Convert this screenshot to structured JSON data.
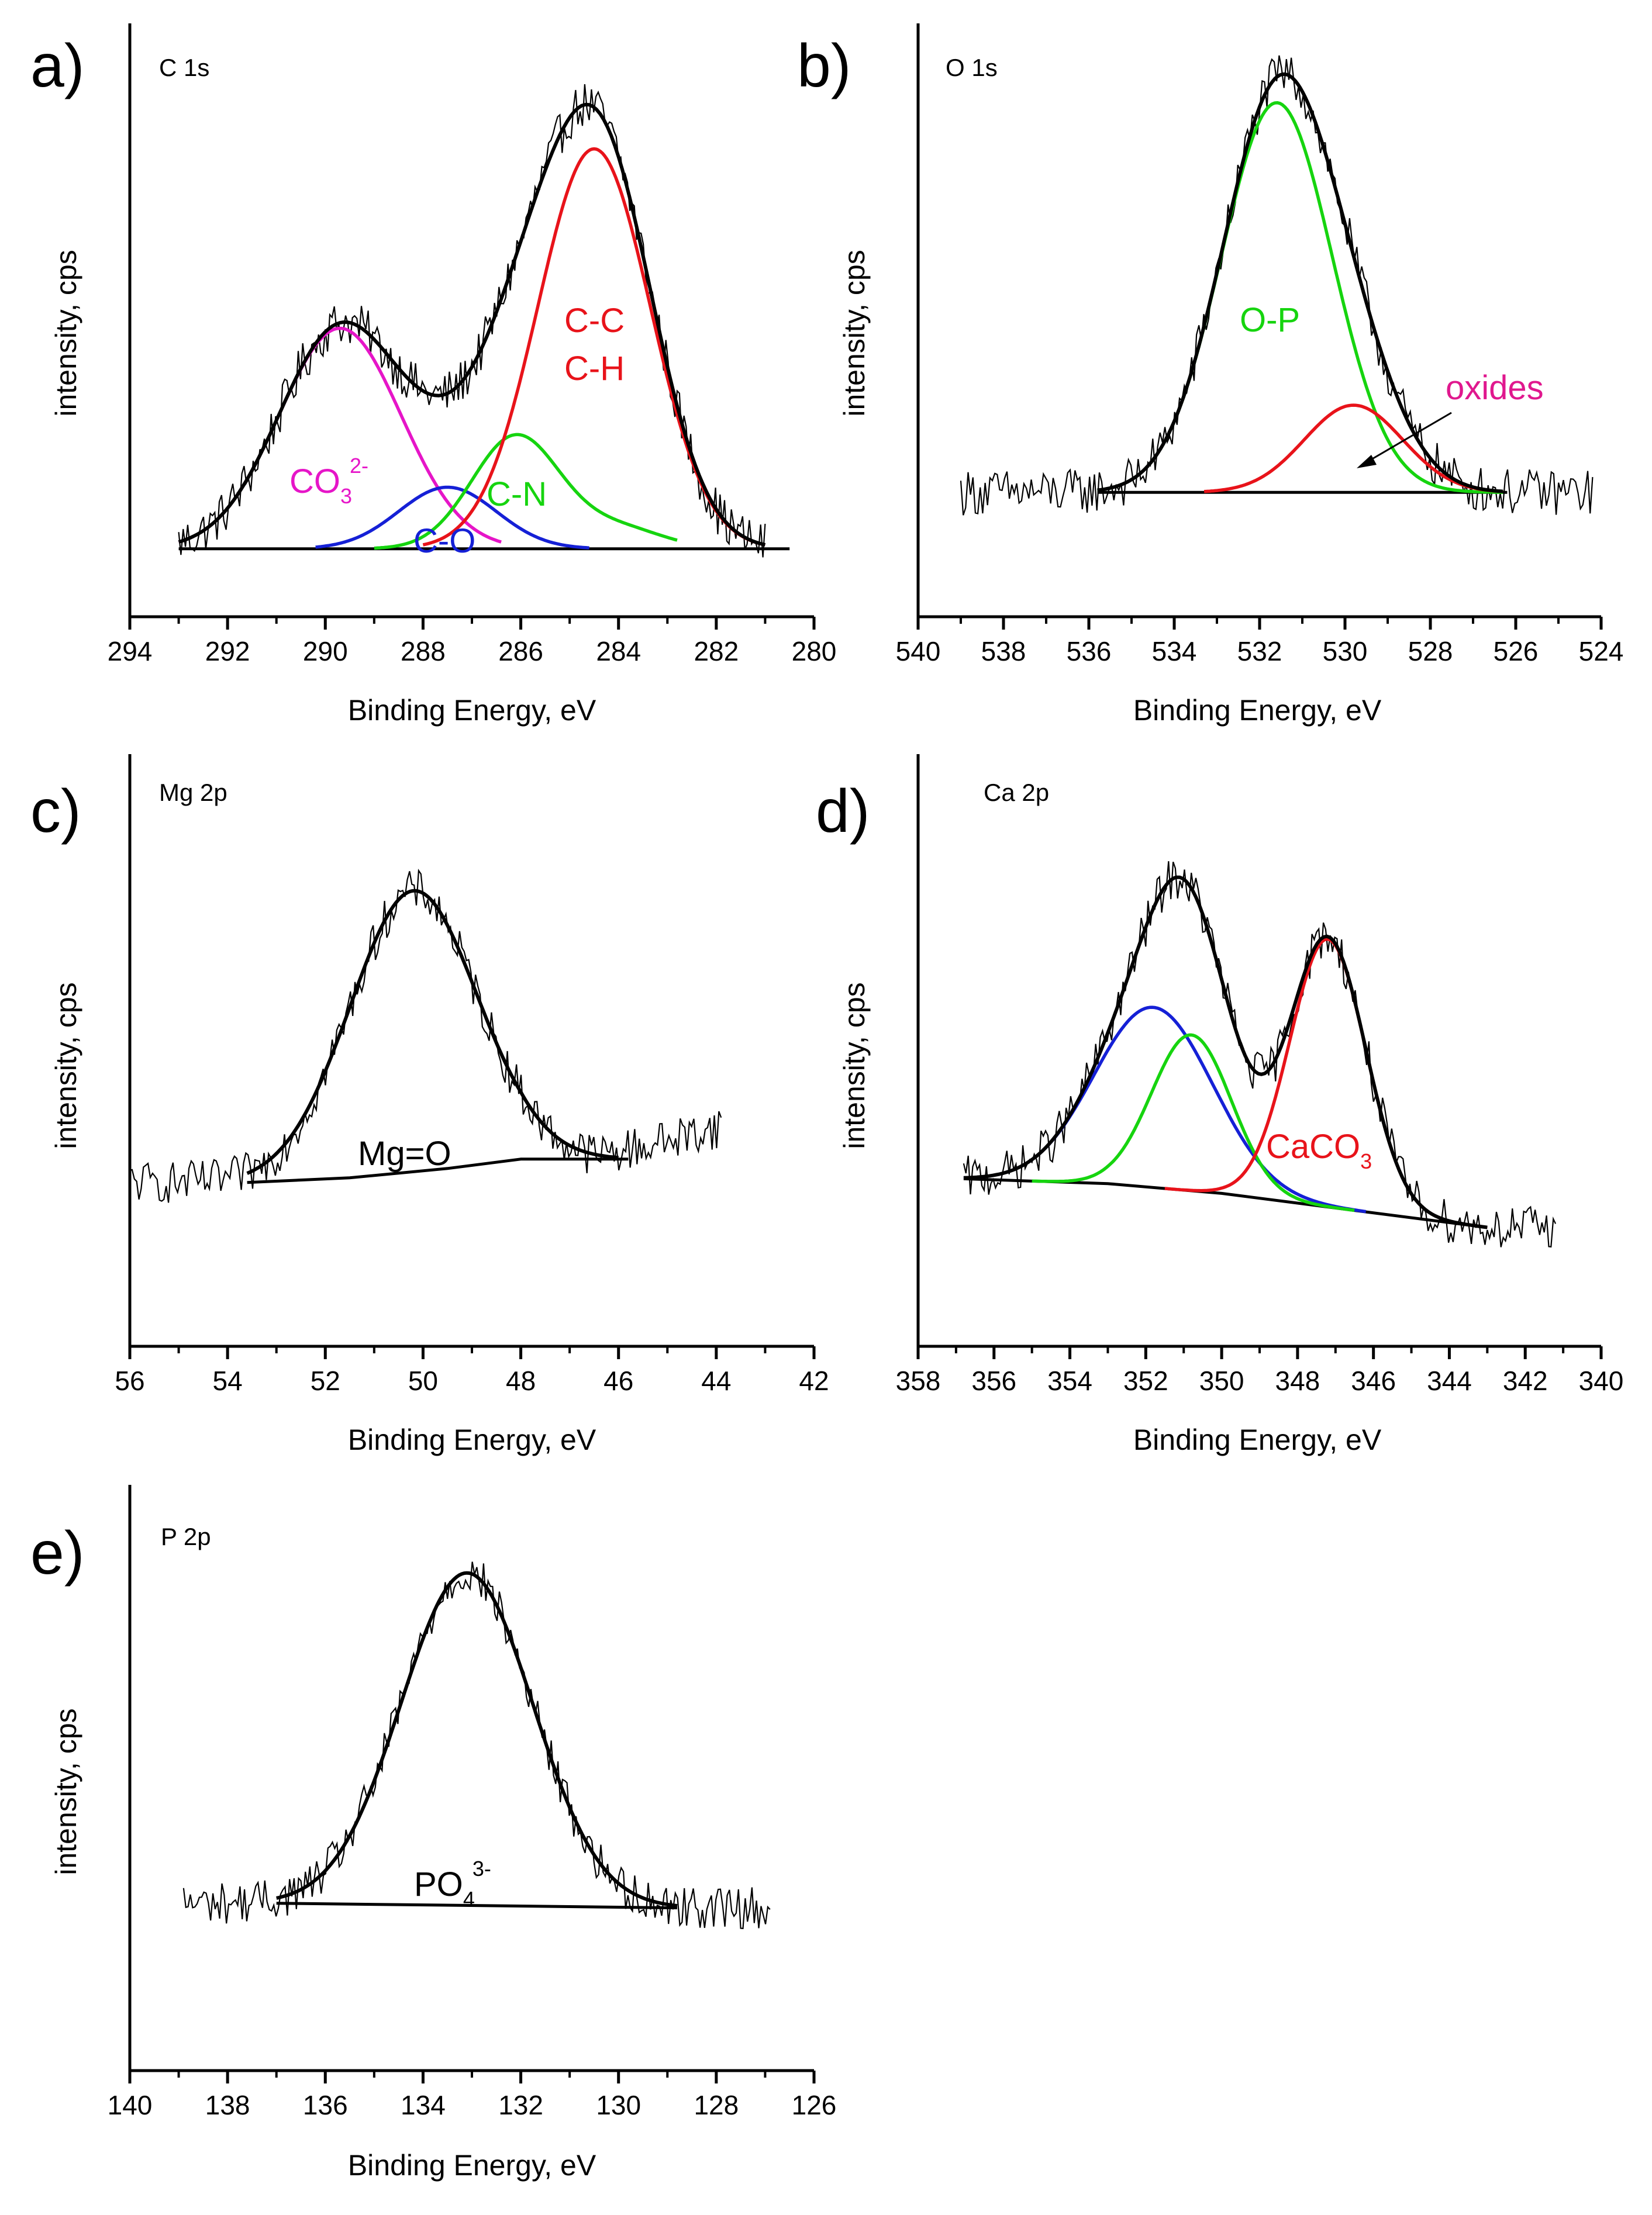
{
  "figure": {
    "colors": {
      "envelope": "#000000",
      "raw": "#000000",
      "red": "#e8131a",
      "green": "#16d40f",
      "blue": "#1520d6",
      "magenta": "#e615c8",
      "oxides_text": "#e0188e"
    }
  },
  "chart_data": [
    {
      "type": "line",
      "panel": "a)",
      "title": "C 1s",
      "xlabel": "Binding Energy, eV",
      "ylabel": "intensity, cps",
      "xlim": [
        294,
        280
      ],
      "xticks": [
        294,
        292,
        290,
        288,
        286,
        284,
        282,
        280
      ],
      "tick_labels": [
        "294",
        "292",
        "290",
        "288",
        "286",
        "284",
        "282",
        "280"
      ],
      "ylim": [
        0,
        100
      ],
      "background": [
        {
          "x": 293.0,
          "y": 3
        },
        {
          "x": 280.5,
          "y": 3
        }
      ],
      "series": [
        {
          "name": "CO3 2-",
          "color_key": "magenta",
          "center": 289.7,
          "height": 43,
          "sigma": 1.25,
          "x_range": [
            293.0,
            286.4
          ]
        },
        {
          "name": "C-O",
          "color_key": "blue",
          "center": 287.5,
          "height": 12,
          "sigma": 1.0,
          "x_range": [
            290.2,
            284.6
          ]
        },
        {
          "name": "C-N",
          "color_key": "green",
          "center": 286.1,
          "height": 22,
          "sigma": 0.9,
          "tail_height": 4,
          "tail_center": 284.0,
          "tail_sigma": 0.9,
          "x_range": [
            289.0,
            282.8
          ]
        },
        {
          "name": "C-C C-H",
          "color_key": "red",
          "center": 284.5,
          "height": 78,
          "sigma": 1.15,
          "x_range": [
            288.0,
            281.0
          ]
        },
        {
          "name": "envelope",
          "color_key": "envelope",
          "x_range": [
            293.0,
            281.0
          ],
          "sum_of": [
            "CO3 2-",
            "C-O",
            "C-N",
            "C-C C-H"
          ]
        }
      ],
      "annotations": [
        {
          "text": "C-C",
          "color_key": "red"
        },
        {
          "text": "C-H",
          "color_key": "red"
        },
        {
          "text": "CO",
          "sub": "3",
          "sup": "2-",
          "color_key": "magenta"
        },
        {
          "text": "C-N",
          "color_key": "green"
        },
        {
          "text": "C-O",
          "color_key": "blue"
        }
      ]
    },
    {
      "type": "line",
      "panel": "b)",
      "title": "O 1s",
      "xlabel": "Binding Energy, eV",
      "ylabel": "intensity, cps",
      "xlim": [
        540,
        524
      ],
      "xticks": [
        540,
        538,
        536,
        534,
        532,
        530,
        528,
        526,
        524
      ],
      "tick_labels": [
        "540",
        "538",
        "536",
        "534",
        "532",
        "530",
        "528",
        "526",
        "524"
      ],
      "ylim": [
        0,
        100
      ],
      "raw_range": [
        539.0,
        524.2
      ],
      "background": [
        {
          "x": 535.8,
          "y": 14
        },
        {
          "x": 526.2,
          "y": 14
        }
      ],
      "series": [
        {
          "name": "O-P",
          "color_key": "green",
          "center": 531.6,
          "height": 76,
          "sigma": 1.3,
          "x_range": [
            535.8,
            526.3
          ]
        },
        {
          "name": "oxides",
          "color_key": "red",
          "center": 529.8,
          "height": 17,
          "sigma": 1.15,
          "x_range": [
            533.3,
            526.3
          ]
        },
        {
          "name": "envelope",
          "color_key": "envelope",
          "x_range": [
            535.8,
            526.3
          ],
          "sum_of": [
            "O-P",
            "oxides"
          ]
        }
      ],
      "annotations": [
        {
          "text": "O-P",
          "color_key": "green"
        },
        {
          "text": "oxides",
          "color_key": "oxides_text",
          "arrow_to_x": 529.5
        }
      ]
    },
    {
      "type": "line",
      "panel": "c)",
      "title": "Mg 2p",
      "xlabel": "Binding Energy, eV",
      "ylabel": "intensity, cps",
      "xlim": [
        56,
        42
      ],
      "xticks": [
        56,
        54,
        52,
        50,
        48,
        46,
        44,
        42
      ],
      "tick_labels": [
        "56",
        "54",
        "52",
        "50",
        "48",
        "46",
        "44",
        "42"
      ],
      "ylim": [
        0,
        100
      ],
      "raw_range": [
        56.0,
        43.9
      ],
      "raw_rise": {
        "from_x": 46.5,
        "to_y": 28
      },
      "background": [
        {
          "x": 53.6,
          "y": 16
        },
        {
          "x": 51.5,
          "y": 17
        },
        {
          "x": 49.5,
          "y": 19
        },
        {
          "x": 48.0,
          "y": 21
        },
        {
          "x": 45.8,
          "y": 21
        }
      ],
      "series": [
        {
          "name": "Mg=O",
          "color_key": "envelope",
          "center": 50.2,
          "height": 60,
          "sigma": 1.3,
          "x_range": [
            53.6,
            46.0
          ]
        }
      ],
      "annotations": [
        {
          "text": "Mg=O",
          "color_key": "envelope"
        }
      ]
    },
    {
      "type": "line",
      "panel": "d)",
      "title": "Ca 2p",
      "xlabel": "Binding Energy, eV",
      "ylabel": "intensity, cps",
      "xlim": [
        358,
        340
      ],
      "xticks": [
        358,
        356,
        354,
        352,
        350,
        348,
        346,
        344,
        342,
        340
      ],
      "tick_labels": [
        "358",
        "356",
        "354",
        "352",
        "350",
        "348",
        "346",
        "344",
        "342",
        "340"
      ],
      "ylim": [
        0,
        100
      ],
      "raw_range": [
        356.8,
        341.2
      ],
      "background": [
        {
          "x": 356.8,
          "y": 20
        },
        {
          "x": 353.0,
          "y": 19
        },
        {
          "x": 350.0,
          "y": 17
        },
        {
          "x": 347.0,
          "y": 14
        },
        {
          "x": 344.0,
          "y": 11
        },
        {
          "x": 343.0,
          "y": 10
        }
      ],
      "series": [
        {
          "name": "Ca 2p1/2 blue",
          "color_key": "blue",
          "center": 351.8,
          "height": 37,
          "sigma": 1.55,
          "x_range": [
            356.8,
            346.2
          ]
        },
        {
          "name": "Ca 2p green",
          "color_key": "green",
          "center": 350.8,
          "height": 32,
          "sigma": 1.05,
          "x_range": [
            355.0,
            346.5
          ]
        },
        {
          "name": "CaCO3",
          "color_key": "red",
          "center": 347.2,
          "height": 55,
          "sigma": 1.0,
          "x_range": [
            351.5,
            343.0
          ]
        },
        {
          "name": "envelope",
          "color_key": "envelope",
          "x_range": [
            356.8,
            343.0
          ],
          "sum_of": [
            "Ca 2p1/2 blue",
            "Ca 2p green",
            "CaCO3"
          ]
        }
      ],
      "annotations": [
        {
          "text": "CaCO",
          "sub": "3",
          "color_key": "red"
        }
      ]
    },
    {
      "type": "line",
      "panel": "e)",
      "title": "P 2p",
      "xlabel": "Binding Energy, eV",
      "ylabel": "intensity, cps",
      "xlim": [
        140,
        126
      ],
      "xticks": [
        140,
        138,
        136,
        134,
        132,
        130,
        128,
        126
      ],
      "tick_labels": [
        "140",
        "138",
        "136",
        "134",
        "132",
        "130",
        "128",
        "126"
      ],
      "ylim": [
        0,
        100
      ],
      "raw_range": [
        138.9,
        126.9
      ],
      "background": [
        {
          "x": 137.0,
          "y": 17
        },
        {
          "x": 128.8,
          "y": 16
        }
      ],
      "series": [
        {
          "name": "PO4 3-",
          "color_key": "envelope",
          "center": 133.1,
          "height": 72,
          "sigma": 1.35,
          "x_range": [
            137.0,
            128.8
          ]
        }
      ],
      "annotations": [
        {
          "text": "PO",
          "sub": "4",
          "sup": "3-",
          "color_key": "envelope"
        }
      ]
    }
  ]
}
